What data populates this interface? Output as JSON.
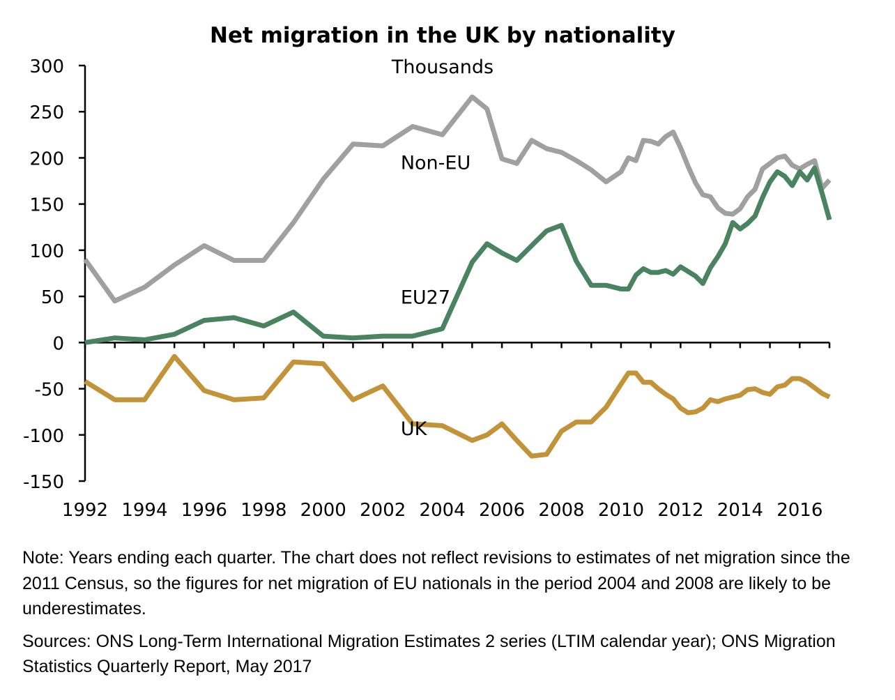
{
  "chart_data": {
    "type": "line",
    "title": "Net migration in the UK by nationality",
    "subtitle": "Thousands",
    "xlabel": "",
    "ylabel": "Thousands",
    "xlim": [
      1992,
      2017
    ],
    "ylim": [
      -150,
      300
    ],
    "yticks": [
      300,
      250,
      200,
      150,
      100,
      50,
      0,
      -50,
      -100,
      -150
    ],
    "ytick_labels": [
      "300",
      "250",
      "200",
      "150",
      "100",
      "50",
      "0",
      "-50",
      "-100",
      "-150"
    ],
    "xticks": [
      1992,
      1994,
      1996,
      1998,
      2000,
      2002,
      2004,
      2006,
      2008,
      2010,
      2012,
      2014,
      2016
    ],
    "xtick_labels": [
      "1992",
      "1994",
      "1996",
      "1998",
      "2000",
      "2002",
      "2004",
      "2006",
      "2008",
      "2010",
      "2012",
      "2014",
      "2016"
    ],
    "grid": false,
    "legend": "inline labels",
    "series": [
      {
        "name": "Non-EU",
        "color": "#a0a0a0",
        "x": [
          1992,
          1993,
          1994,
          1995,
          1996,
          1997,
          1998,
          1999,
          2000,
          2001,
          2002,
          2003,
          2004,
          2005,
          2005.5,
          2006,
          2006.5,
          2007,
          2007.5,
          2008,
          2008.5,
          2009,
          2009.5,
          2010,
          2010.25,
          2010.5,
          2010.75,
          2011,
          2011.25,
          2011.5,
          2011.75,
          2012,
          2012.25,
          2012.5,
          2012.75,
          2013,
          2013.25,
          2013.5,
          2013.75,
          2014,
          2014.25,
          2014.5,
          2014.75,
          2015,
          2015.25,
          2015.5,
          2015.75,
          2016,
          2016.25,
          2016.5,
          2016.75,
          2017
        ],
        "values": [
          90,
          45,
          60,
          84,
          105,
          89,
          89,
          130,
          177,
          215,
          213,
          234,
          225,
          266,
          253,
          199,
          194,
          219,
          210,
          206,
          197,
          187,
          174,
          185,
          200,
          197,
          219,
          218,
          215,
          223,
          228,
          211,
          191,
          173,
          160,
          158,
          146,
          140,
          139,
          145,
          158,
          166,
          188,
          194,
          200,
          202,
          192,
          188,
          193,
          197,
          167,
          176
        ]
      },
      {
        "name": "EU27",
        "color": "#4a8360",
        "x": [
          1992,
          1993,
          1994,
          1995,
          1996,
          1997,
          1998,
          1999,
          2000,
          2001,
          2002,
          2003,
          2004,
          2005,
          2005.5,
          2006,
          2006.5,
          2007,
          2007.5,
          2008,
          2008.5,
          2009,
          2009.5,
          2010,
          2010.25,
          2010.5,
          2010.75,
          2011,
          2011.25,
          2011.5,
          2011.75,
          2012,
          2012.25,
          2012.5,
          2012.75,
          2013,
          2013.25,
          2013.5,
          2013.75,
          2014,
          2014.25,
          2014.5,
          2014.75,
          2015,
          2015.25,
          2015.5,
          2015.75,
          2016,
          2016.25,
          2016.5,
          2016.75,
          2017
        ],
        "values": [
          0,
          5,
          3,
          9,
          24,
          27,
          18,
          33,
          7,
          5,
          7,
          7,
          15,
          87,
          107,
          97,
          89,
          105,
          121,
          127,
          88,
          62,
          62,
          58,
          58,
          73,
          80,
          76,
          76,
          78,
          74,
          82,
          77,
          72,
          64,
          81,
          93,
          107,
          130,
          123,
          129,
          137,
          157,
          174,
          185,
          180,
          170,
          185,
          176,
          189,
          162,
          133
        ]
      },
      {
        "name": "UK",
        "color": "#c39339",
        "x": [
          1992,
          1993,
          1994,
          1995,
          1996,
          1997,
          1998,
          1999,
          2000,
          2001,
          2002,
          2003,
          2004,
          2005,
          2005.5,
          2006,
          2006.5,
          2007,
          2007.5,
          2008,
          2008.5,
          2009,
          2009.5,
          2010,
          2010.25,
          2010.5,
          2010.75,
          2011,
          2011.25,
          2011.5,
          2011.75,
          2012,
          2012.25,
          2012.5,
          2012.75,
          2013,
          2013.25,
          2013.5,
          2013.75,
          2014,
          2014.25,
          2014.5,
          2014.75,
          2015,
          2015.25,
          2015.5,
          2015.75,
          2016,
          2016.25,
          2016.5,
          2016.75,
          2017
        ],
        "values": [
          -42,
          -62,
          -62,
          -15,
          -52,
          -62,
          -60,
          -21,
          -23,
          -62,
          -47,
          -88,
          -90,
          -106,
          -100,
          -88,
          -106,
          -123,
          -121,
          -96,
          -86,
          -86,
          -70,
          -45,
          -33,
          -33,
          -43,
          -43,
          -50,
          -56,
          -61,
          -71,
          -76,
          -75,
          -71,
          -62,
          -64,
          -61,
          -59,
          -57,
          -51,
          -50,
          -54,
          -56,
          -48,
          -46,
          -39,
          -39,
          -43,
          -49,
          -55,
          -59
        ]
      }
    ],
    "annotations": [
      {
        "text": "Non-EU",
        "x": 2002.6,
        "y": 188
      },
      {
        "text": "EU27",
        "x": 2002.6,
        "y": 42
      },
      {
        "text": "UK",
        "x": 2002.6,
        "y": -100
      }
    ]
  },
  "notes": {
    "note": "Note: Years ending each quarter. The chart does not reflect revisions to estimates of net migration since the 2011 Census, so the figures for net migration of EU nationals in the period 2004 and 2008 are likely to be underestimates.",
    "sources": "Sources: ONS Long-Term International Migration Estimates 2 series (LTIM calendar year); ONS Migration Statistics Quarterly Report, May 2017"
  }
}
